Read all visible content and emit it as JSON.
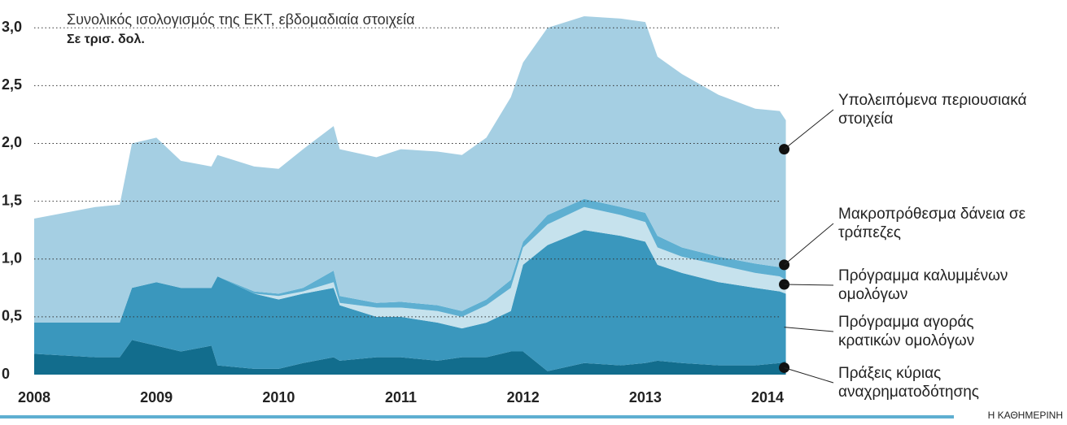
{
  "chart_data": {
    "type": "stacked-area",
    "title": "Συνολικός ισολογισμός της ΕΚΤ, εβδομαδιαία στοιχεία",
    "subtitle": "Σε τρισ. δολ.",
    "source": "Η ΚΑΘΗΜΕΡΙΝΗ",
    "x": [
      2008.0,
      2008.5,
      2008.7,
      2008.8,
      2009.0,
      2009.2,
      2009.45,
      2009.5,
      2009.8,
      2010.0,
      2010.2,
      2010.45,
      2010.5,
      2010.8,
      2011.0,
      2011.3,
      2011.5,
      2011.7,
      2011.9,
      2012.0,
      2012.2,
      2012.5,
      2012.8,
      2013.0,
      2013.1,
      2013.3,
      2013.6,
      2013.9,
      2014.1,
      2014.15
    ],
    "xlim": [
      2008,
      2014.2
    ],
    "xticks": [
      2008,
      2009,
      2010,
      2011,
      2012,
      2013,
      2014
    ],
    "ylim": [
      0,
      3.1
    ],
    "yticks": [
      0,
      {
        "value": 0.5,
        "label": "0,5"
      },
      {
        "value": 1.0,
        "label": "1,0"
      },
      {
        "value": 1.5,
        "label": "1,5"
      },
      {
        "value": 2.0,
        "label": "2,0"
      },
      {
        "value": 2.5,
        "label": "2,5"
      },
      {
        "value": 3.0,
        "label": "3,0"
      }
    ],
    "grid": true,
    "series": [
      {
        "name": "Πράξεις κύριας αναχρηματοδότησης",
        "color": "#126d8d",
        "values": [
          0.18,
          0.15,
          0.15,
          0.3,
          0.25,
          0.2,
          0.25,
          0.08,
          0.05,
          0.05,
          0.1,
          0.15,
          0.12,
          0.15,
          0.15,
          0.12,
          0.15,
          0.15,
          0.2,
          0.2,
          0.03,
          0.1,
          0.08,
          0.1,
          0.12,
          0.1,
          0.08,
          0.08,
          0.1,
          0.12
        ]
      },
      {
        "name": "Πρόγραμμα αγοράς κρατικών ομολόγων",
        "color": "#3a97bd",
        "values": [
          0.27,
          0.3,
          0.3,
          0.45,
          0.55,
          0.55,
          0.5,
          0.77,
          0.65,
          0.6,
          0.6,
          0.6,
          0.48,
          0.35,
          0.35,
          0.33,
          0.25,
          0.3,
          0.35,
          0.75,
          1.09,
          1.15,
          1.12,
          1.05,
          0.83,
          0.78,
          0.72,
          0.67,
          0.62,
          0.58
        ]
      },
      {
        "name": "Πρόγραμμα καλυμμένων ομολόγων",
        "color": "#c6e2ed",
        "values": [
          0,
          0,
          0,
          0,
          0,
          0,
          0,
          0,
          0,
          0.03,
          0.02,
          0.05,
          0.02,
          0.08,
          0.08,
          0.1,
          0.1,
          0.15,
          0.2,
          0.15,
          0.18,
          0.2,
          0.18,
          0.17,
          0.15,
          0.14,
          0.15,
          0.13,
          0.13,
          0.12
        ]
      },
      {
        "name": "Μακροπρόθεσμα δάνεια σε τράπεζες",
        "color": "#5eafd1",
        "values": [
          0,
          0,
          0,
          0,
          0,
          0,
          0,
          0,
          0.02,
          0.02,
          0.03,
          0.1,
          0.06,
          0.04,
          0.05,
          0.05,
          0.05,
          0.05,
          0.07,
          0.05,
          0.08,
          0.07,
          0.07,
          0.08,
          0.1,
          0.08,
          0.07,
          0.08,
          0.08,
          0.13
        ]
      },
      {
        "name": "Υπολειπόμενα περιουσιακά στοιχεία",
        "color": "#a5cfe3",
        "values": [
          0.9,
          1.0,
          1.02,
          1.25,
          1.25,
          1.1,
          1.05,
          1.05,
          1.08,
          1.08,
          1.2,
          1.25,
          1.27,
          1.26,
          1.32,
          1.33,
          1.35,
          1.4,
          1.58,
          1.55,
          1.62,
          1.58,
          1.63,
          1.65,
          1.55,
          1.5,
          1.4,
          1.34,
          1.35,
          1.25
        ]
      }
    ]
  }
}
